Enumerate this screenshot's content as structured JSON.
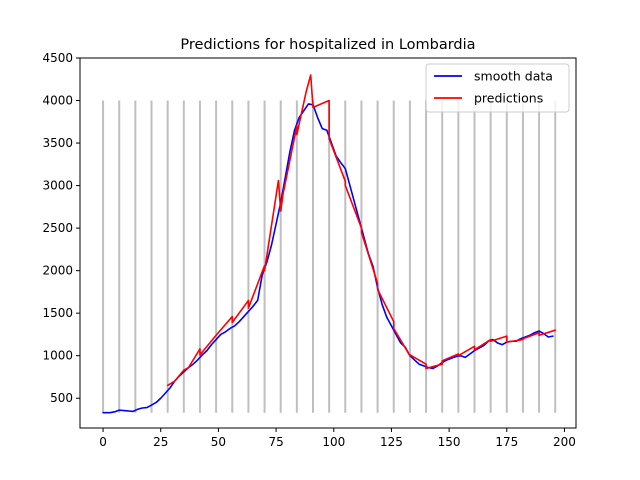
{
  "chart_data": {
    "type": "line",
    "title": "Predictions for hospitalized in Lombardia",
    "xlabel": "",
    "ylabel": "",
    "xlim": [
      -10,
      205
    ],
    "ylim": [
      150,
      4500
    ],
    "x_ticks": [
      "0",
      "25",
      "50",
      "75",
      "100",
      "125",
      "150",
      "175",
      "200"
    ],
    "x_tick_values": [
      0,
      25,
      50,
      75,
      100,
      125,
      150,
      175,
      200
    ],
    "y_ticks": [
      "500",
      "1000",
      "1500",
      "2000",
      "2500",
      "3000",
      "3500",
      "4000",
      "4500"
    ],
    "y_tick_values": [
      500,
      1000,
      1500,
      2000,
      2500,
      3000,
      3500,
      4000,
      4500
    ],
    "grid": false,
    "legend_position": "upper right",
    "vertical_markers": {
      "x": [
        0,
        7,
        14,
        21,
        28,
        35,
        42,
        49,
        56,
        63,
        70,
        77,
        84,
        91,
        98,
        105,
        112,
        119,
        126,
        133,
        140,
        147,
        154,
        161,
        168,
        175,
        182,
        189,
        196
      ],
      "y_from": 330,
      "y_to": 4000,
      "color": "#bfbfbf"
    },
    "series": [
      {
        "name": "smooth data",
        "color": "#0000ff",
        "points": [
          [
            0,
            330
          ],
          [
            3,
            330
          ],
          [
            5,
            340
          ],
          [
            7,
            360
          ],
          [
            9,
            355
          ],
          [
            11,
            350
          ],
          [
            13,
            345
          ],
          [
            15,
            370
          ],
          [
            17,
            385
          ],
          [
            19,
            390
          ],
          [
            21,
            420
          ],
          [
            23,
            450
          ],
          [
            25,
            500
          ],
          [
            27,
            560
          ],
          [
            29,
            620
          ],
          [
            31,
            700
          ],
          [
            33,
            760
          ],
          [
            35,
            810
          ],
          [
            37,
            860
          ],
          [
            39,
            900
          ],
          [
            41,
            950
          ],
          [
            43,
            1010
          ],
          [
            45,
            1060
          ],
          [
            47,
            1130
          ],
          [
            49,
            1190
          ],
          [
            51,
            1250
          ],
          [
            53,
            1280
          ],
          [
            55,
            1320
          ],
          [
            57,
            1350
          ],
          [
            59,
            1400
          ],
          [
            61,
            1460
          ],
          [
            63,
            1520
          ],
          [
            65,
            1580
          ],
          [
            67,
            1650
          ],
          [
            69,
            1950
          ],
          [
            71,
            2100
          ],
          [
            73,
            2300
          ],
          [
            75,
            2550
          ],
          [
            77,
            2800
          ],
          [
            79,
            3100
          ],
          [
            81,
            3400
          ],
          [
            83,
            3650
          ],
          [
            85,
            3800
          ],
          [
            87,
            3880
          ],
          [
            89,
            3960
          ],
          [
            91,
            3950
          ],
          [
            93,
            3800
          ],
          [
            95,
            3670
          ],
          [
            97,
            3650
          ],
          [
            99,
            3500
          ],
          [
            101,
            3350
          ],
          [
            103,
            3270
          ],
          [
            105,
            3200
          ],
          [
            107,
            3000
          ],
          [
            109,
            2800
          ],
          [
            111,
            2600
          ],
          [
            113,
            2400
          ],
          [
            115,
            2200
          ],
          [
            117,
            2050
          ],
          [
            119,
            1800
          ],
          [
            121,
            1600
          ],
          [
            123,
            1450
          ],
          [
            125,
            1350
          ],
          [
            127,
            1250
          ],
          [
            129,
            1150
          ],
          [
            131,
            1100
          ],
          [
            133,
            1000
          ],
          [
            135,
            950
          ],
          [
            137,
            900
          ],
          [
            139,
            880
          ],
          [
            141,
            860
          ],
          [
            143,
            850
          ],
          [
            145,
            880
          ],
          [
            147,
            920
          ],
          [
            149,
            950
          ],
          [
            151,
            970
          ],
          [
            153,
            990
          ],
          [
            155,
            1000
          ],
          [
            157,
            980
          ],
          [
            159,
            1020
          ],
          [
            161,
            1060
          ],
          [
            163,
            1090
          ],
          [
            165,
            1120
          ],
          [
            167,
            1170
          ],
          [
            169,
            1190
          ],
          [
            171,
            1150
          ],
          [
            173,
            1130
          ],
          [
            175,
            1160
          ],
          [
            177,
            1170
          ],
          [
            179,
            1170
          ],
          [
            181,
            1200
          ],
          [
            183,
            1220
          ],
          [
            185,
            1240
          ],
          [
            187,
            1270
          ],
          [
            189,
            1290
          ],
          [
            191,
            1260
          ],
          [
            193,
            1220
          ],
          [
            195,
            1230
          ]
        ]
      },
      {
        "name": "predictions",
        "color": "#ff0000",
        "points": [
          [
            28,
            650
          ],
          [
            31,
            700
          ],
          [
            35,
            830
          ],
          [
            37,
            860
          ],
          [
            42,
            1080
          ],
          [
            42,
            1010
          ],
          [
            49,
            1240
          ],
          [
            56,
            1460
          ],
          [
            56,
            1390
          ],
          [
            63,
            1650
          ],
          [
            63,
            1560
          ],
          [
            70,
            2060
          ],
          [
            70,
            2000
          ],
          [
            76,
            3060
          ],
          [
            77,
            2700
          ],
          [
            78,
            2900
          ],
          [
            84,
            3700
          ],
          [
            84,
            3600
          ],
          [
            88,
            4100
          ],
          [
            90,
            4300
          ],
          [
            91,
            3920
          ],
          [
            98,
            4000
          ],
          [
            98,
            3550
          ],
          [
            105,
            3050
          ],
          [
            105,
            3000
          ],
          [
            112,
            2500
          ],
          [
            112,
            2450
          ],
          [
            119,
            1850
          ],
          [
            119,
            1780
          ],
          [
            126,
            1400
          ],
          [
            126,
            1320
          ],
          [
            133,
            1000
          ],
          [
            133,
            1010
          ],
          [
            140,
            900
          ],
          [
            140,
            850
          ],
          [
            147,
            900
          ],
          [
            147,
            940
          ],
          [
            154,
            1020
          ],
          [
            154,
            1000
          ],
          [
            161,
            1110
          ],
          [
            161,
            1070
          ],
          [
            168,
            1190
          ],
          [
            168,
            1170
          ],
          [
            175,
            1230
          ],
          [
            175,
            1160
          ],
          [
            182,
            1190
          ],
          [
            182,
            1200
          ],
          [
            189,
            1270
          ],
          [
            189,
            1240
          ],
          [
            196,
            1300
          ]
        ]
      }
    ]
  }
}
